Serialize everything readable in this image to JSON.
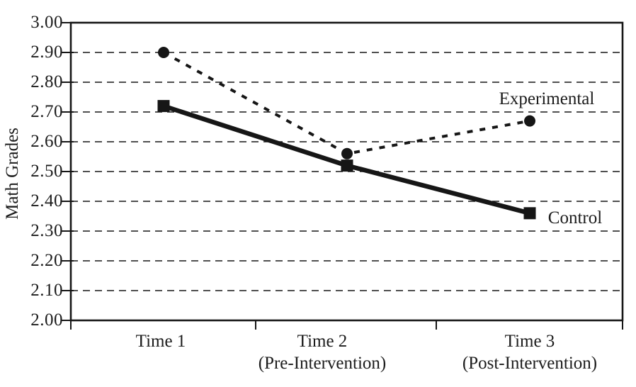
{
  "figure": {
    "background": "#ffffff",
    "ink_color": "#161616"
  },
  "chart_data": {
    "type": "line",
    "title": "",
    "xlabel": "",
    "ylabel": "Math Grades",
    "ylim": [
      2.0,
      3.0
    ],
    "ytick_step": 0.1,
    "ytick_labels": [
      "3.00",
      "2.90",
      "2.80",
      "2.70",
      "2.60",
      "2.50",
      "2.40",
      "2.30",
      "2.20",
      "2.10",
      "2.00"
    ],
    "categories": [
      {
        "line1": "Time 1",
        "line2": ""
      },
      {
        "line1": "Time 2",
        "line2": "(Pre-Intervention)"
      },
      {
        "line1": "Time 3",
        "line2": "(Post-Intervention)"
      }
    ],
    "series": [
      {
        "name": "Experimental",
        "marker": "circle",
        "line_style": "dashed",
        "values": [
          2.9,
          2.56,
          2.67
        ]
      },
      {
        "name": "Control",
        "marker": "square",
        "line_style": "solid",
        "values": [
          2.72,
          2.52,
          2.36
        ]
      }
    ],
    "grid": "horizontal-dashed",
    "legend_position": "inline-annotations-right"
  }
}
